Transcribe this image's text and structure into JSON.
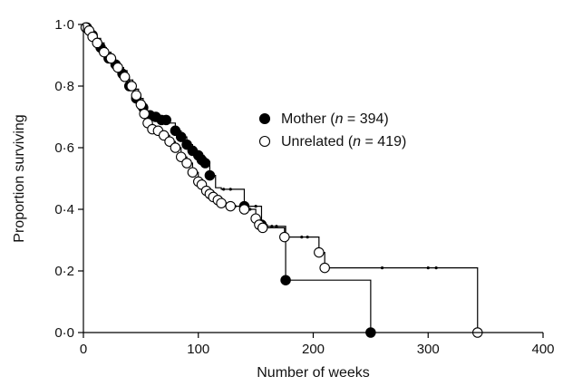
{
  "chart_data": {
    "type": "line",
    "subtype": "kaplan-meier survival curves (step functions with censor marks)",
    "xlabel": "Number of weeks",
    "ylabel": "Proportion surviving",
    "xlim": [
      0,
      400
    ],
    "ylim": [
      0,
      1
    ],
    "x_ticks": [
      0,
      100,
      200,
      300,
      400
    ],
    "x_tick_labels": [
      "0",
      "100",
      "200",
      "300",
      "400"
    ],
    "y_ticks": [
      0,
      0.2,
      0.4,
      0.6,
      0.8,
      1.0
    ],
    "y_tick_labels": [
      "0·0",
      "0·2",
      "0·4",
      "0·6",
      "0·8",
      "1·0"
    ],
    "grid": false,
    "legend_position": "center-right",
    "legend": [
      {
        "series": "mother",
        "prefix": "Mother (",
        "italic": "n",
        "suffix": " = 394)"
      },
      {
        "series": "unrelated",
        "prefix": "Unrelated (",
        "italic": "n",
        "suffix": " = 419)"
      }
    ],
    "series": [
      {
        "name": "Mother (n = 394)",
        "marker": "filled-circle",
        "color": "#000000",
        "steps": [
          [
            0,
            1.0
          ],
          [
            3,
            0.99
          ],
          [
            6,
            0.975
          ],
          [
            10,
            0.955
          ],
          [
            15,
            0.925
          ],
          [
            20,
            0.9
          ],
          [
            25,
            0.88
          ],
          [
            30,
            0.86
          ],
          [
            35,
            0.83
          ],
          [
            40,
            0.8
          ],
          [
            45,
            0.77
          ],
          [
            50,
            0.74
          ],
          [
            55,
            0.71
          ],
          [
            62,
            0.7
          ],
          [
            68,
            0.69
          ],
          [
            75,
            0.68
          ],
          [
            80,
            0.655
          ],
          [
            85,
            0.635
          ],
          [
            90,
            0.61
          ],
          [
            95,
            0.59
          ],
          [
            100,
            0.575
          ],
          [
            105,
            0.555
          ],
          [
            110,
            0.51
          ],
          [
            115,
            0.47
          ],
          [
            120,
            0.465
          ],
          [
            140,
            0.41
          ],
          [
            155,
            0.35
          ],
          [
            160,
            0.345
          ],
          [
            176,
            0.17
          ],
          [
            250,
            0.0
          ]
        ],
        "end_x": 250,
        "events": [
          [
            3,
            0.99
          ],
          [
            8,
            0.965
          ],
          [
            15,
            0.925
          ],
          [
            22,
            0.89
          ],
          [
            28,
            0.87
          ],
          [
            34,
            0.84
          ],
          [
            40,
            0.8
          ],
          [
            46,
            0.76
          ],
          [
            52,
            0.73
          ],
          [
            58,
            0.705
          ],
          [
            63,
            0.7
          ],
          [
            68,
            0.69
          ],
          [
            72,
            0.69
          ],
          [
            80,
            0.655
          ],
          [
            85,
            0.635
          ],
          [
            90,
            0.61
          ],
          [
            95,
            0.59
          ],
          [
            100,
            0.575
          ],
          [
            103,
            0.56
          ],
          [
            106,
            0.55
          ],
          [
            110,
            0.51
          ],
          [
            140,
            0.41
          ],
          [
            155,
            0.35
          ],
          [
            176,
            0.17
          ],
          [
            250,
            0.0
          ]
        ],
        "censored": [
          [
            122,
            0.465
          ],
          [
            128,
            0.465
          ],
          [
            150,
            0.41
          ],
          [
            164,
            0.345
          ],
          [
            168,
            0.345
          ]
        ]
      },
      {
        "name": "Unrelated (n = 419)",
        "marker": "open-circle",
        "color": "#000000",
        "steps": [
          [
            0,
            1.0
          ],
          [
            2,
            0.99
          ],
          [
            5,
            0.98
          ],
          [
            8,
            0.96
          ],
          [
            12,
            0.94
          ],
          [
            18,
            0.91
          ],
          [
            24,
            0.89
          ],
          [
            28,
            0.87
          ],
          [
            33,
            0.85
          ],
          [
            38,
            0.82
          ],
          [
            43,
            0.79
          ],
          [
            48,
            0.76
          ],
          [
            52,
            0.72
          ],
          [
            56,
            0.68
          ],
          [
            60,
            0.66
          ],
          [
            65,
            0.655
          ],
          [
            70,
            0.64
          ],
          [
            75,
            0.62
          ],
          [
            80,
            0.6
          ],
          [
            85,
            0.57
          ],
          [
            90,
            0.55
          ],
          [
            95,
            0.52
          ],
          [
            100,
            0.49
          ],
          [
            105,
            0.47
          ],
          [
            110,
            0.45
          ],
          [
            115,
            0.43
          ],
          [
            120,
            0.42
          ],
          [
            128,
            0.41
          ],
          [
            140,
            0.4
          ],
          [
            150,
            0.37
          ],
          [
            153,
            0.35
          ],
          [
            156,
            0.34
          ],
          [
            175,
            0.31
          ],
          [
            205,
            0.26
          ],
          [
            210,
            0.21
          ],
          [
            343,
            0.0
          ]
        ],
        "end_x": 343,
        "events": [
          [
            2,
            0.99
          ],
          [
            5,
            0.98
          ],
          [
            8,
            0.96
          ],
          [
            12,
            0.94
          ],
          [
            18,
            0.91
          ],
          [
            24,
            0.89
          ],
          [
            30,
            0.86
          ],
          [
            36,
            0.83
          ],
          [
            42,
            0.8
          ],
          [
            46,
            0.77
          ],
          [
            50,
            0.74
          ],
          [
            53,
            0.71
          ],
          [
            56,
            0.68
          ],
          [
            60,
            0.66
          ],
          [
            65,
            0.655
          ],
          [
            70,
            0.64
          ],
          [
            75,
            0.62
          ],
          [
            80,
            0.6
          ],
          [
            85,
            0.57
          ],
          [
            90,
            0.55
          ],
          [
            95,
            0.52
          ],
          [
            100,
            0.49
          ],
          [
            103,
            0.48
          ],
          [
            107,
            0.46
          ],
          [
            110,
            0.45
          ],
          [
            113,
            0.44
          ],
          [
            117,
            0.43
          ],
          [
            120,
            0.42
          ],
          [
            128,
            0.41
          ],
          [
            140,
            0.4
          ],
          [
            150,
            0.37
          ],
          [
            153,
            0.35
          ],
          [
            156,
            0.34
          ],
          [
            175,
            0.31
          ],
          [
            205,
            0.26
          ],
          [
            210,
            0.21
          ],
          [
            343,
            0.0
          ]
        ],
        "censored": [
          [
            132,
            0.41
          ],
          [
            145,
            0.4
          ],
          [
            158,
            0.34
          ],
          [
            190,
            0.31
          ],
          [
            195,
            0.31
          ],
          [
            260,
            0.21
          ],
          [
            300,
            0.21
          ],
          [
            307,
            0.21
          ]
        ]
      }
    ]
  }
}
